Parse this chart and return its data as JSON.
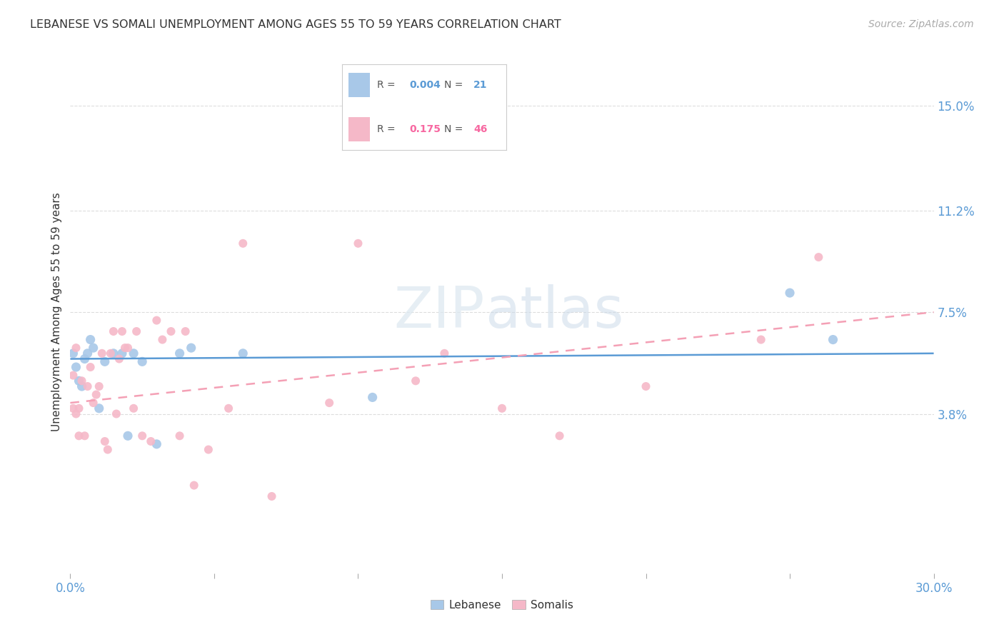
{
  "title": "LEBANESE VS SOMALI UNEMPLOYMENT AMONG AGES 55 TO 59 YEARS CORRELATION CHART",
  "source": "Source: ZipAtlas.com",
  "ylabel": "Unemployment Among Ages 55 to 59 years",
  "xlim": [
    0.0,
    0.3
  ],
  "ylim": [
    -0.02,
    0.17
  ],
  "ytick_positions": [
    0.038,
    0.075,
    0.112,
    0.15
  ],
  "ytick_labels": [
    "3.8%",
    "7.5%",
    "11.2%",
    "15.0%"
  ],
  "color_lebanese": "#a8c8e8",
  "color_somali": "#f5b8c8",
  "color_lebanese_line": "#5b9bd5",
  "color_somali_line": "#f4a0b5",
  "background_color": "#ffffff",
  "grid_color": "#dddddd",
  "lebanese_x": [
    0.001,
    0.002,
    0.003,
    0.004,
    0.005,
    0.006,
    0.007,
    0.008,
    0.01,
    0.012,
    0.015,
    0.018,
    0.02,
    0.022,
    0.025,
    0.03,
    0.038,
    0.042,
    0.06,
    0.105,
    0.25,
    0.265
  ],
  "lebanese_y": [
    0.06,
    0.055,
    0.05,
    0.048,
    0.058,
    0.06,
    0.065,
    0.062,
    0.04,
    0.057,
    0.06,
    0.06,
    0.03,
    0.06,
    0.057,
    0.027,
    0.06,
    0.062,
    0.06,
    0.044,
    0.082,
    0.065
  ],
  "somali_x": [
    0.001,
    0.001,
    0.002,
    0.002,
    0.003,
    0.003,
    0.004,
    0.005,
    0.006,
    0.007,
    0.008,
    0.009,
    0.01,
    0.011,
    0.012,
    0.013,
    0.014,
    0.015,
    0.016,
    0.017,
    0.018,
    0.019,
    0.02,
    0.022,
    0.023,
    0.025,
    0.028,
    0.03,
    0.032,
    0.035,
    0.038,
    0.04,
    0.043,
    0.048,
    0.055,
    0.06,
    0.07,
    0.09,
    0.1,
    0.12,
    0.13,
    0.15,
    0.17,
    0.2,
    0.24,
    0.26
  ],
  "somali_y": [
    0.052,
    0.04,
    0.062,
    0.038,
    0.03,
    0.04,
    0.05,
    0.03,
    0.048,
    0.055,
    0.042,
    0.045,
    0.048,
    0.06,
    0.028,
    0.025,
    0.06,
    0.068,
    0.038,
    0.058,
    0.068,
    0.062,
    0.062,
    0.04,
    0.068,
    0.03,
    0.028,
    0.072,
    0.065,
    0.068,
    0.03,
    0.068,
    0.012,
    0.025,
    0.04,
    0.1,
    0.008,
    0.042,
    0.1,
    0.05,
    0.06,
    0.04,
    0.03,
    0.048,
    0.065,
    0.095
  ]
}
